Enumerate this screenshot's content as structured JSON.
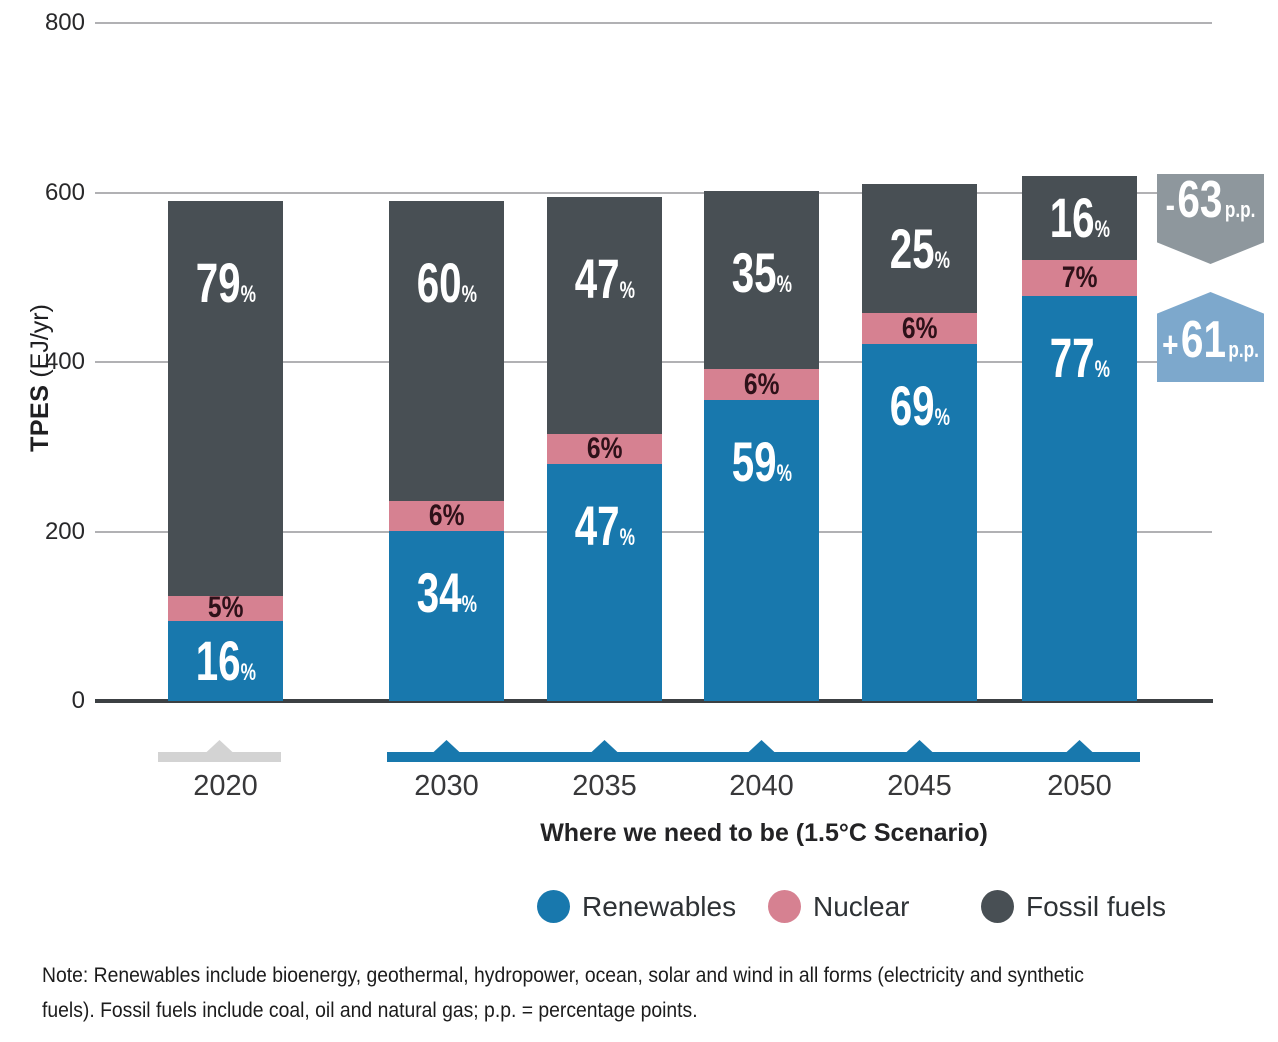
{
  "chart_data": {
    "type": "bar",
    "stacked": true,
    "ylabel_bold": "TPES",
    "ylabel_units": " (EJ/yr)",
    "ylim": [
      0,
      800
    ],
    "y_ticks": [
      800,
      600,
      400,
      200,
      0
    ],
    "grid": true,
    "legend_position": "bottom",
    "categories": [
      "2020",
      "2030",
      "2035",
      "2040",
      "2045",
      "2050"
    ],
    "totals_ej_estimated": [
      590,
      590,
      595,
      602,
      610,
      620
    ],
    "series": [
      {
        "name": "Renewables",
        "color": "#1878AD",
        "share_pct": [
          16,
          34,
          47,
          59,
          69,
          77
        ]
      },
      {
        "name": "Nuclear",
        "color": "#D68191",
        "share_pct": [
          5,
          6,
          6,
          6,
          6,
          7
        ]
      },
      {
        "name": "Fossil fuels",
        "color": "#484F54",
        "share_pct": [
          79,
          60,
          47,
          35,
          25,
          16
        ]
      }
    ],
    "segment_label_format": "share_pct",
    "annotations": [
      {
        "sign": "-",
        "value": "63",
        "unit": "p.p.",
        "series": "Fossil fuels",
        "direction": "down",
        "color": "#8E979D"
      },
      {
        "sign": "+",
        "value": "61",
        "unit": "p.p.",
        "series": "Renewables",
        "direction": "up",
        "color": "#7DA8CC"
      }
    ],
    "x_groups": [
      {
        "label": "2020",
        "type": "historical",
        "color": "#D3D3D3"
      },
      {
        "label": "Where we need to be (1.5°C Scenario)",
        "type": "scenario",
        "color": "#1878AD",
        "years": [
          "2030",
          "2035",
          "2040",
          "2045",
          "2050"
        ]
      }
    ]
  },
  "legend": {
    "items": [
      {
        "label": "Renewables",
        "color": "#1878AD"
      },
      {
        "label": "Nuclear",
        "color": "#D68191"
      },
      {
        "label": "Fossil fuels",
        "color": "#484F54"
      }
    ]
  },
  "note": {
    "line1": "Note: Renewables include bioenergy, geothermal, hydropower, ocean, solar and wind in all forms (electricity and synthetic",
    "line2": "fuels). Fossil fuels include coal, oil and natural gas; p.p. = percentage points."
  }
}
